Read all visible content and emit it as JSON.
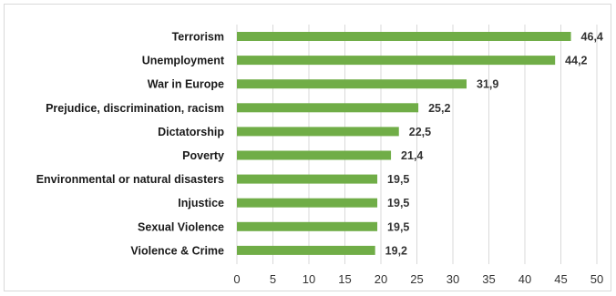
{
  "chart_data": {
    "type": "bar",
    "orientation": "horizontal",
    "categories": [
      "Terrorism",
      "Unemployment",
      "War in Europe",
      "Prejudice, discrimination, racism",
      "Dictatorship",
      "Poverty",
      "Environmental or natural disasters",
      "Injustice",
      "Sexual Violence",
      "Violence & Crime"
    ],
    "values": [
      46.4,
      44.2,
      31.9,
      25.2,
      22.5,
      21.4,
      19.5,
      19.5,
      19.5,
      19.2
    ],
    "value_labels": [
      "46,4",
      "44,2",
      "31,9",
      "25,2",
      "22,5",
      "21,4",
      "19,5",
      "19,5",
      "19,5",
      "19,2"
    ],
    "x_ticks": [
      "0",
      "5",
      "10",
      "15",
      "20",
      "25",
      "30",
      "35",
      "40",
      "45",
      "50"
    ],
    "xlim": [
      0,
      50
    ],
    "grid": "vertical",
    "bar_color": "#70ad47",
    "gridline_color": "#d9d9d9",
    "title": "",
    "xlabel": "",
    "ylabel": ""
  }
}
